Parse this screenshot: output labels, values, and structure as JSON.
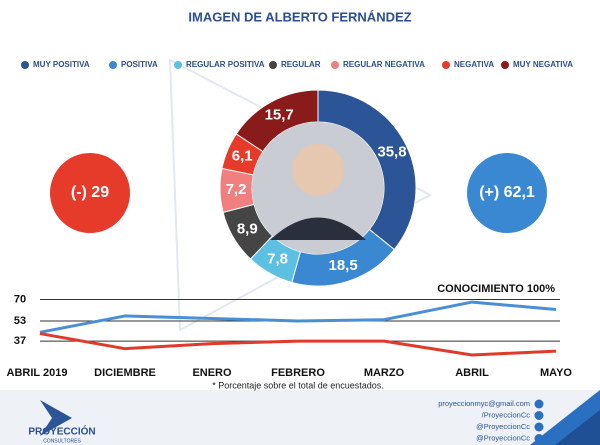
{
  "title": "IMAGEN DE ALBERTO FERNÁNDEZ",
  "chart_data": [
    {
      "type": "pie",
      "categories": [
        "MUY POSITIVA",
        "POSITIVA",
        "REGULAR POSITIVA",
        "REGULAR",
        "REGULAR NEGATIVA",
        "NEGATIVA",
        "MUY NEGATIVA"
      ],
      "values": [
        35.8,
        18.5,
        7.8,
        8.9,
        7.2,
        6.1,
        15.7
      ],
      "value_labels": [
        "35,8",
        "18,5",
        "7,8",
        "8,9",
        "7,2",
        "6,1",
        "15,7"
      ],
      "colors": [
        "#2b5597",
        "#3b88d2",
        "#5cc0e2",
        "#454545",
        "#f07f7f",
        "#e63a2a",
        "#8a1b1b"
      ],
      "annotations": [
        "(-) 29",
        "(+) 62,1"
      ],
      "annotation_colors": [
        "#e63a2a",
        "#3b88d2"
      ]
    },
    {
      "type": "line",
      "categories": [
        "ABRIL 2019",
        "DICIEMBRE",
        "ENERO",
        "FEBRERO",
        "MARZO",
        "ABRIL",
        "MAYO"
      ],
      "series": [
        {
          "color": "#4a8fd6",
          "values": [
            44,
            57,
            55,
            53,
            54,
            68,
            62.1
          ]
        },
        {
          "color": "#e03a2a",
          "values": [
            43,
            31,
            35,
            37,
            37,
            26,
            29
          ]
        }
      ],
      "ylim": [
        22,
        76
      ],
      "yticks": [
        70,
        53,
        37
      ],
      "grid": true,
      "annotation": "CONOCIMIENTO 100%",
      "note": "* Porcentaje sobre el total de encuestados."
    }
  ],
  "footer": {
    "brand": "PROYECCIÓN",
    "sub": "CONSULTORES",
    "contacts": [
      "proyeccionmyc@gmail.com",
      "/ProyeccionCc",
      "@ProyeccionCc",
      "@ProyeccionCc"
    ]
  }
}
